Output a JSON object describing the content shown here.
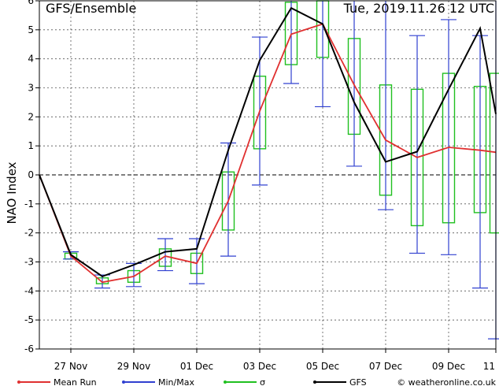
{
  "chart_data": {
    "type": "line",
    "title_left": "GFS/Ensemble",
    "title_right": "Tue, 2019.11.26  12 UTC",
    "ylabel": "NAO Index",
    "ylim": [
      -6,
      6
    ],
    "y_ticks": [
      "-6",
      "-5",
      "-4",
      "-3",
      "-2",
      "-1",
      "0",
      "1",
      "2",
      "3",
      "4",
      "5",
      "6"
    ],
    "x_range": [
      0,
      14.5
    ],
    "x_ticks": [
      {
        "x": 1,
        "label": "27 Nov"
      },
      {
        "x": 3,
        "label": "29 Nov"
      },
      {
        "x": 5,
        "label": "01 Dec"
      },
      {
        "x": 7,
        "label": "03 Dec"
      },
      {
        "x": 9,
        "label": "05 Dec"
      },
      {
        "x": 11,
        "label": "07 Dec"
      },
      {
        "x": 13,
        "label": "09 Dec"
      },
      {
        "x": 14.5,
        "label": "11"
      }
    ],
    "grid": true,
    "zero_line": true,
    "series": [
      {
        "name": "Mean Run",
        "color": "#e03030",
        "points": [
          [
            0.0,
            0.0
          ],
          [
            1.0,
            -2.8
          ],
          [
            2.0,
            -3.7
          ],
          [
            3.0,
            -3.5
          ],
          [
            4.0,
            -2.8
          ],
          [
            5.0,
            -3.05
          ],
          [
            6.0,
            -0.9
          ],
          [
            7.0,
            2.2
          ],
          [
            8.0,
            4.85
          ],
          [
            9.0,
            5.2
          ],
          [
            10.0,
            3.1
          ],
          [
            11.0,
            1.2
          ],
          [
            12.0,
            0.6
          ],
          [
            13.0,
            0.95
          ],
          [
            14.0,
            0.85
          ],
          [
            14.5,
            0.78
          ]
        ]
      },
      {
        "name": "GFS",
        "color": "#000000",
        "points": [
          [
            0.0,
            0.0
          ],
          [
            1.0,
            -2.75
          ],
          [
            2.0,
            -3.5
          ],
          [
            3.0,
            -3.1
          ],
          [
            4.0,
            -2.65
          ],
          [
            5.0,
            -2.55
          ],
          [
            6.0,
            0.85
          ],
          [
            7.0,
            3.95
          ],
          [
            8.0,
            5.75
          ],
          [
            9.0,
            5.2
          ],
          [
            10.0,
            2.5
          ],
          [
            11.0,
            0.45
          ],
          [
            12.0,
            0.8
          ],
          [
            13.0,
            2.95
          ],
          [
            14.0,
            5.05
          ],
          [
            14.5,
            2.1
          ]
        ]
      }
    ],
    "min_max": {
      "name": "Min/Max",
      "color": "#3040d0",
      "bars": [
        {
          "x": 1.0,
          "min": -2.9,
          "max": -2.65
        },
        {
          "x": 2.0,
          "min": -3.9,
          "max": -3.45
        },
        {
          "x": 3.0,
          "min": -3.85,
          "max": -3.05
        },
        {
          "x": 4.0,
          "min": -3.3,
          "max": -2.2
        },
        {
          "x": 5.0,
          "min": -3.75,
          "max": -2.2
        },
        {
          "x": 6.0,
          "min": -2.8,
          "max": 1.1
        },
        {
          "x": 7.0,
          "min": -0.35,
          "max": 4.75
        },
        {
          "x": 8.0,
          "min": 3.15,
          "max": 6.0
        },
        {
          "x": 9.0,
          "min": 2.35,
          "max": 6.0
        },
        {
          "x": 10.0,
          "min": 0.3,
          "max": 6.0
        },
        {
          "x": 11.0,
          "min": -1.2,
          "max": 6.0
        },
        {
          "x": 12.0,
          "min": -2.7,
          "max": 4.8
        },
        {
          "x": 13.0,
          "min": -2.75,
          "max": 5.35
        },
        {
          "x": 14.0,
          "min": -3.9,
          "max": 4.8
        },
        {
          "x": 14.5,
          "min": -5.65,
          "max": 6.0
        }
      ]
    },
    "sigma": {
      "name": "σ",
      "color": "#20c020",
      "boxes": [
        {
          "x": 1.0,
          "low": -2.9,
          "high": -2.7
        },
        {
          "x": 2.0,
          "low": -3.75,
          "high": -3.55
        },
        {
          "x": 3.0,
          "low": -3.7,
          "high": -3.3
        },
        {
          "x": 4.0,
          "low": -3.15,
          "high": -2.55
        },
        {
          "x": 5.0,
          "low": -3.4,
          "high": -2.7
        },
        {
          "x": 6.0,
          "low": -1.9,
          "high": 0.1
        },
        {
          "x": 7.0,
          "low": 0.9,
          "high": 3.4
        },
        {
          "x": 8.0,
          "low": 3.8,
          "high": 5.95
        },
        {
          "x": 9.0,
          "low": 4.05,
          "high": 6.0
        },
        {
          "x": 10.0,
          "low": 1.4,
          "high": 4.7
        },
        {
          "x": 11.0,
          "low": -0.7,
          "high": 3.1
        },
        {
          "x": 12.0,
          "low": -1.75,
          "high": 2.95
        },
        {
          "x": 13.0,
          "low": -1.65,
          "high": 3.5
        },
        {
          "x": 14.0,
          "low": -1.3,
          "high": 3.05
        },
        {
          "x": 14.5,
          "low": -2.0,
          "high": 3.5
        }
      ]
    },
    "legend": [
      {
        "label": "Mean Run",
        "color": "#e03030",
        "icon": "line-dot"
      },
      {
        "label": "Min/Max",
        "color": "#3040d0",
        "icon": "line-dot"
      },
      {
        "label": "σ",
        "color": "#20c020",
        "icon": "line-dot"
      },
      {
        "label": "GFS",
        "color": "#000000",
        "icon": "line-dot"
      }
    ],
    "credit": "© weatheronline.co.uk"
  }
}
